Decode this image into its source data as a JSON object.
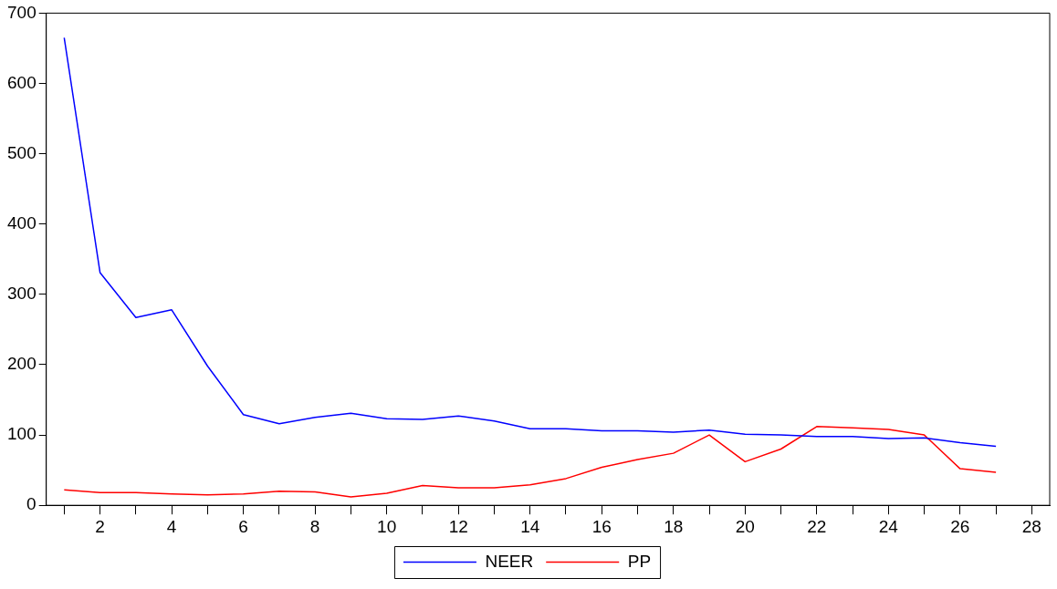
{
  "chart_data": {
    "type": "line",
    "x": [
      1,
      2,
      3,
      4,
      5,
      6,
      7,
      8,
      9,
      10,
      11,
      12,
      13,
      14,
      15,
      16,
      17,
      18,
      19,
      20,
      21,
      22,
      23,
      24,
      25,
      26,
      27
    ],
    "series": [
      {
        "name": "NEER",
        "color": "#0000ff",
        "values": [
          665,
          331,
          267,
          278,
          198,
          129,
          116,
          125,
          131,
          123,
          122,
          127,
          120,
          109,
          109,
          106,
          106,
          104,
          107,
          101,
          100,
          98,
          98,
          95,
          96,
          89,
          84
        ]
      },
      {
        "name": "PP",
        "color": "#ff0000",
        "values": [
          22,
          18,
          18,
          16,
          15,
          16,
          20,
          19,
          12,
          17,
          28,
          25,
          25,
          29,
          38,
          54,
          65,
          74,
          100,
          62,
          80,
          112,
          110,
          108,
          100,
          52,
          47
        ]
      }
    ],
    "xlim": [
      0.5,
      28.5
    ],
    "xticks": [
      {
        "value": 1,
        "label": null
      },
      2,
      {
        "value": 3,
        "label": null
      },
      4,
      {
        "value": 5,
        "label": null
      },
      6,
      {
        "value": 7,
        "label": null
      },
      8,
      {
        "value": 9,
        "label": null
      },
      10,
      {
        "value": 11,
        "label": null
      },
      12,
      {
        "value": 13,
        "label": null
      },
      14,
      {
        "value": 15,
        "label": null
      },
      16,
      {
        "value": 17,
        "label": null
      },
      18,
      {
        "value": 19,
        "label": null
      },
      20,
      {
        "value": 21,
        "label": null
      },
      22,
      {
        "value": 23,
        "label": null
      },
      24,
      {
        "value": 25,
        "label": null
      },
      26,
      {
        "value": 27,
        "label": null
      },
      28
    ],
    "ylim": [
      0,
      700
    ],
    "yticks": [
      0,
      100,
      200,
      300,
      400,
      500,
      600,
      700
    ],
    "grid": false,
    "legend": "bottom",
    "marker": "none",
    "line_style": "solid"
  }
}
